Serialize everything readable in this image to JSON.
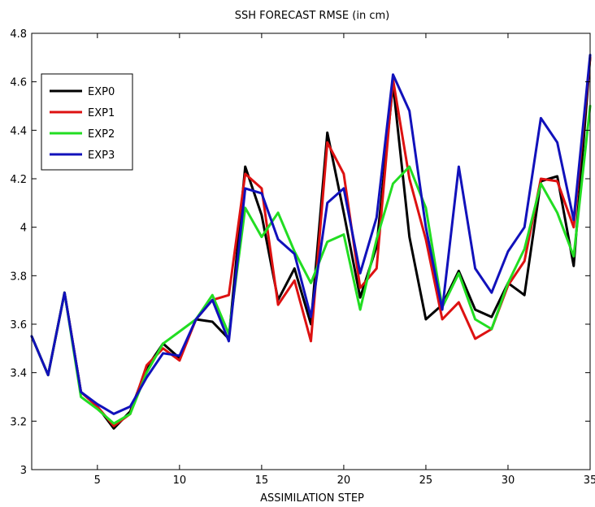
{
  "chart_data": {
    "type": "line",
    "title": "SSH FORECAST RMSE (in cm)",
    "xlabel": "ASSIMILATION STEP",
    "ylabel": "",
    "xlim": [
      1,
      35
    ],
    "ylim": [
      3,
      4.8
    ],
    "xticks": [
      5,
      10,
      15,
      20,
      25,
      30,
      35
    ],
    "yticks": [
      3,
      3.2,
      3.4,
      3.6,
      3.8,
      4,
      4.2,
      4.4,
      4.6,
      4.8
    ],
    "x": [
      1,
      2,
      3,
      4,
      5,
      6,
      7,
      8,
      9,
      10,
      11,
      12,
      13,
      14,
      15,
      16,
      17,
      18,
      19,
      20,
      21,
      22,
      23,
      24,
      25,
      26,
      27,
      28,
      29,
      30,
      31,
      32,
      33,
      34,
      35
    ],
    "grid": false,
    "legend_position": "upper-left",
    "series": [
      {
        "name": "EXP0",
        "color": "#000000",
        "values": [
          3.55,
          3.39,
          3.73,
          3.32,
          3.26,
          3.17,
          3.24,
          3.42,
          3.52,
          3.46,
          3.62,
          3.61,
          3.54,
          4.25,
          4.05,
          3.7,
          3.83,
          3.6,
          4.39,
          4.06,
          3.71,
          3.92,
          4.59,
          3.96,
          3.62,
          3.68,
          3.82,
          3.66,
          3.63,
          3.77,
          3.72,
          4.19,
          4.21,
          3.84,
          4.7
        ]
      },
      {
        "name": "EXP1",
        "color": "#dd1111",
        "values": [
          3.55,
          3.39,
          3.73,
          3.32,
          3.26,
          3.18,
          3.23,
          3.43,
          3.5,
          3.45,
          3.62,
          3.7,
          3.72,
          4.22,
          4.16,
          3.68,
          3.78,
          3.53,
          4.35,
          4.22,
          3.75,
          3.83,
          4.61,
          4.2,
          3.95,
          3.62,
          3.69,
          3.54,
          3.58,
          3.76,
          3.86,
          4.2,
          4.19,
          4.0,
          4.7
        ]
      },
      {
        "name": "EXP2",
        "color": "#22dd22",
        "values": [
          3.55,
          3.39,
          3.73,
          3.3,
          3.25,
          3.19,
          3.23,
          3.4,
          3.52,
          3.57,
          3.62,
          3.72,
          3.56,
          4.08,
          3.96,
          4.06,
          3.9,
          3.77,
          3.94,
          3.97,
          3.66,
          3.95,
          4.18,
          4.25,
          4.08,
          3.67,
          3.81,
          3.62,
          3.58,
          3.77,
          3.91,
          4.18,
          4.06,
          3.88,
          4.5
        ]
      },
      {
        "name": "EXP3",
        "color": "#1111bb",
        "values": [
          3.55,
          3.39,
          3.73,
          3.32,
          3.27,
          3.23,
          3.26,
          3.38,
          3.48,
          3.47,
          3.62,
          3.7,
          3.53,
          4.16,
          4.14,
          3.95,
          3.89,
          3.63,
          4.1,
          4.16,
          3.81,
          4.04,
          4.63,
          4.48,
          4.0,
          3.66,
          4.25,
          3.83,
          3.73,
          3.9,
          4.0,
          4.45,
          4.35,
          4.03,
          4.71
        ]
      }
    ]
  }
}
